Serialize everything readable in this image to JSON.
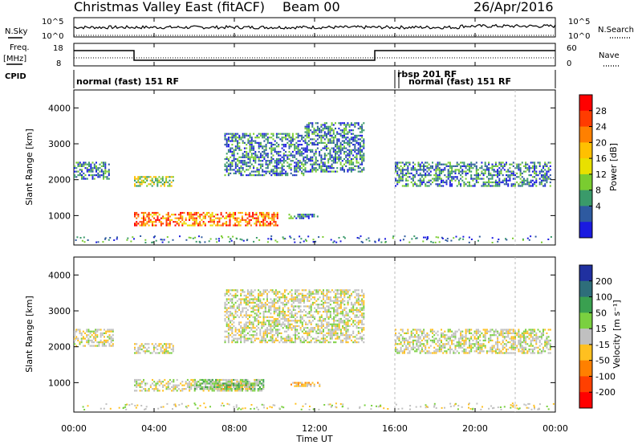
{
  "header": {
    "title": "Christmas Valley East (fitACF)",
    "beam": "Beam 00",
    "date": "26/Apr/2016"
  },
  "top_strip": {
    "nsky_label": "N.Sky",
    "nsearch_label": "N.Search",
    "left_ticks": [
      "10^5",
      "10^0"
    ],
    "right_ticks": [
      "10^5",
      "10^0"
    ],
    "freq_label": "Freq.",
    "freq_unit": "[MHz]",
    "freq_ticks": [
      "18",
      "8"
    ],
    "nave_label": "Nave",
    "nave_ticks": [
      "60",
      "0"
    ],
    "cpid_label": "CPID",
    "cpid_segments": [
      {
        "label": "normal (fast) 151 RF",
        "start": 0.0,
        "end": 16.0
      },
      {
        "label": "rbsp 201 RF",
        "start": 16.0,
        "end": 16.2
      },
      {
        "label": "normal (fast) 151 RF",
        "start": 16.2,
        "end": 24.0
      }
    ],
    "freq_steps": [
      {
        "start": 0.0,
        "end": 3.0,
        "level": "high"
      },
      {
        "start": 3.0,
        "end": 15.0,
        "level": "low"
      },
      {
        "start": 15.0,
        "end": 24.0,
        "level": "high"
      }
    ]
  },
  "power_panel": {
    "ylabel": "Slant Range [km]",
    "colorbar_label": "Power [dB]",
    "colorbar_ticks": [
      "28",
      "24",
      "20",
      "16",
      "12",
      "8",
      "4"
    ],
    "colorbar_colors": [
      "#ff0000",
      "#ff3c00",
      "#ff8000",
      "#ffc000",
      "#e8e000",
      "#7acc30",
      "#3a9a6a",
      "#2e5aa0",
      "#1a1ae0"
    ]
  },
  "velocity_panel": {
    "ylabel": "Slant Range [km]",
    "colorbar_label": "Velocity [m s⁻¹]",
    "colorbar_ticks": [
      "200",
      "100",
      "50",
      "15",
      "-15",
      "-50",
      "-100",
      "-200"
    ],
    "colorbar_colors": [
      "#2030a0",
      "#2e6e7a",
      "#3aa050",
      "#7ad040",
      "#c0c0c0",
      "#ffc020",
      "#ff8000",
      "#ff4000",
      "#ff0000"
    ]
  },
  "xaxis": {
    "label": "Time UT",
    "ticks": [
      "00:00",
      "04:00",
      "08:00",
      "12:00",
      "16:00",
      "20:00",
      "00:00"
    ]
  },
  "chart_data": [
    {
      "type": "heatmap",
      "title": "Power",
      "xlabel": "Time UT",
      "ylabel": "Slant Range [km]",
      "xlim": [
        0,
        24
      ],
      "ylim": [
        180,
        4500
      ],
      "yticks": [
        1000,
        2000,
        3000,
        4000
      ],
      "colorbar": {
        "label": "Power [dB]",
        "ticks": [
          4,
          8,
          12,
          16,
          20,
          24,
          28
        ]
      },
      "regions": [
        {
          "t_start": 3.0,
          "t_end": 10.2,
          "r_min": 700,
          "r_max": 1100,
          "value": 24
        },
        {
          "t_start": 10.7,
          "t_end": 12.2,
          "r_min": 900,
          "r_max": 1050,
          "value": 12
        },
        {
          "t_start": 0.0,
          "t_end": 1.8,
          "r_min": 2000,
          "r_max": 2500,
          "value": 12
        },
        {
          "t_start": 3.0,
          "t_end": 5.0,
          "r_min": 1800,
          "r_max": 2100,
          "value": 16
        },
        {
          "t_start": 7.5,
          "t_end": 11.5,
          "r_min": 2100,
          "r_max": 3300,
          "value": 10
        },
        {
          "t_start": 11.5,
          "t_end": 14.5,
          "r_min": 2200,
          "r_max": 3600,
          "value": 10
        },
        {
          "t_start": 16.0,
          "t_end": 23.8,
          "r_min": 1800,
          "r_max": 2500,
          "value": 11
        }
      ]
    },
    {
      "type": "heatmap",
      "title": "Velocity",
      "xlabel": "Time UT",
      "ylabel": "Slant Range [km]",
      "xlim": [
        0,
        24
      ],
      "ylim": [
        180,
        4500
      ],
      "yticks": [
        1000,
        2000,
        3000,
        4000
      ],
      "colorbar": {
        "label": "Velocity [m s⁻¹]",
        "ticks": [
          -200,
          -100,
          -50,
          -15,
          15,
          50,
          100,
          200
        ]
      },
      "regions": [
        {
          "t_start": 3.0,
          "t_end": 9.5,
          "r_min": 750,
          "r_max": 1100,
          "value": 0
        },
        {
          "t_start": 7.0,
          "t_end": 9.0,
          "r_min": 800,
          "r_max": 1000,
          "value": -30
        },
        {
          "t_start": 6.0,
          "t_end": 9.5,
          "r_min": 800,
          "r_max": 1100,
          "value": 20
        },
        {
          "t_start": 10.8,
          "t_end": 12.3,
          "r_min": 880,
          "r_max": 1020,
          "value": -20
        },
        {
          "t_start": 0.0,
          "t_end": 2.0,
          "r_min": 2000,
          "r_max": 2500,
          "value": 0
        },
        {
          "t_start": 3.0,
          "t_end": 5.0,
          "r_min": 1800,
          "r_max": 2100,
          "value": 0
        },
        {
          "t_start": 7.5,
          "t_end": 14.5,
          "r_min": 2100,
          "r_max": 3600,
          "value": 5
        },
        {
          "t_start": 16.0,
          "t_end": 23.8,
          "r_min": 1800,
          "r_max": 2500,
          "value": 0
        }
      ]
    }
  ]
}
